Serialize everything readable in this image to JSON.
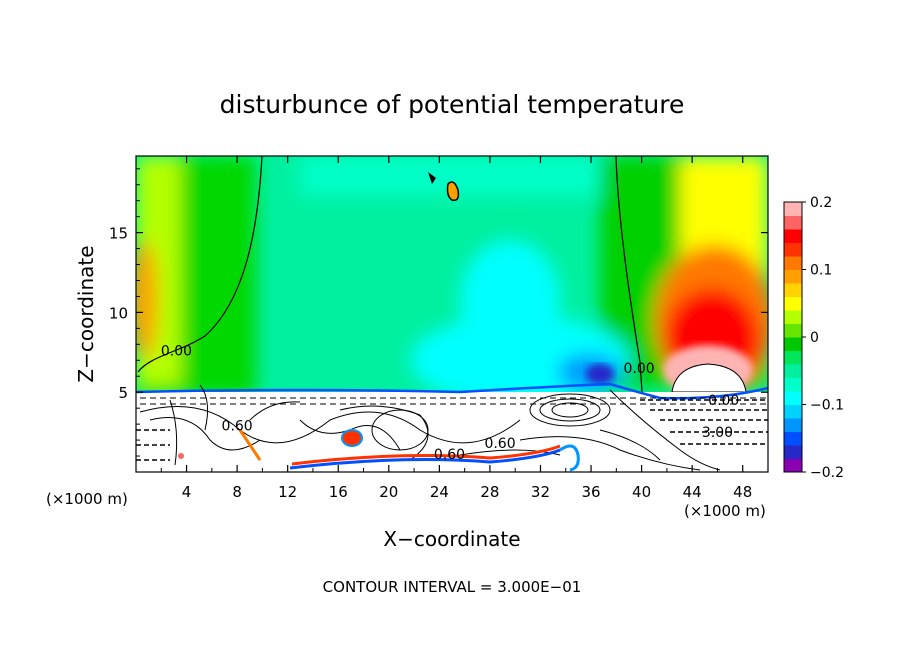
{
  "chart_data": {
    "type": "heatmap",
    "title": "disturbunce of potential temperature",
    "xlabel": "X−coordinate",
    "ylabel": "Z−coordinate",
    "x_unit_left": "(×1000 m)",
    "x_unit_right": "(×1000 m)",
    "footer": "CONTOUR INTERVAL = 3.000E−01",
    "xlim": [
      0,
      50
    ],
    "ylim": [
      0,
      19.8
    ],
    "x_ticks": [
      4,
      8,
      12,
      16,
      20,
      24,
      28,
      32,
      36,
      40,
      44,
      48
    ],
    "y_ticks": [
      5,
      10,
      15
    ],
    "colorbar": {
      "range": [
        -0.2,
        0.2
      ],
      "tick_values": [
        0.2,
        0.1,
        0,
        -0.1,
        -0.2
      ],
      "tick_labels": [
        "0.2",
        "0.1",
        "0",
        "−0.1",
        "−0.2"
      ],
      "colors": [
        "#8c00b4",
        "#2828c8",
        "#0050ff",
        "#0096ff",
        "#00d2ff",
        "#00ffff",
        "#00ffc8",
        "#00f0a0",
        "#00e65a",
        "#00c800",
        "#64e600",
        "#b4ff00",
        "#ffff00",
        "#ffd200",
        "#ffa000",
        "#ff7800",
        "#ff3200",
        "#ff0000",
        "#ff6464",
        "#ffb4b4"
      ]
    },
    "fields": [
      {
        "name": "upper-left-warm",
        "x": 0.6,
        "z": 11,
        "value": 0.09
      },
      {
        "name": "upper-right-warm",
        "x": 45.5,
        "z": 9,
        "value": 0.18
      },
      {
        "name": "right-core",
        "x": 45,
        "z": 6.5,
        "value": 0.2
      },
      {
        "name": "central-cool",
        "x": 24,
        "z": 12,
        "value": -0.04
      },
      {
        "name": "lower-cool",
        "x": 36,
        "z": 6.2,
        "value": -0.12
      }
    ],
    "contour_labels": [
      {
        "text": "0.00",
        "x": 3.2,
        "z": 7.3
      },
      {
        "text": "0.00",
        "x": 39.8,
        "z": 6.2
      },
      {
        "text": "0.60",
        "x": 8,
        "z": 2.6
      },
      {
        "text": "0.60",
        "x": 28.8,
        "z": 1.5
      },
      {
        "text": "0.60",
        "x": 24.8,
        "z": 0.8
      },
      {
        "text": "3.00",
        "x": 46,
        "z": 2.2
      },
      {
        "text": "0.00",
        "x": 46.5,
        "z": 4.2
      }
    ]
  }
}
